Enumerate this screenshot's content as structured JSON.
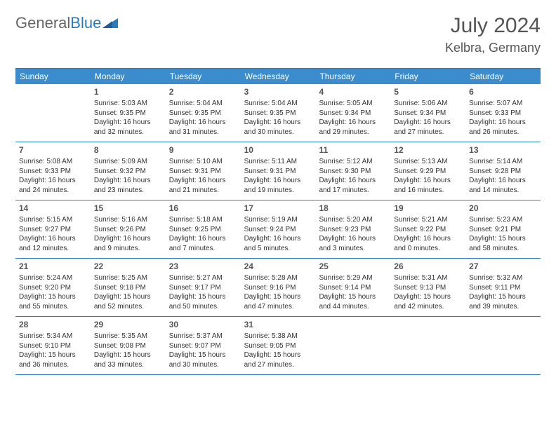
{
  "logo": {
    "general": "General",
    "blue": "Blue"
  },
  "month_title": "July 2024",
  "location": "Kelbra, Germany",
  "colors": {
    "header_bg": "#3a8ccc",
    "header_text": "#ffffff",
    "rule": "#2a7ac0",
    "text": "#333333",
    "title": "#555555"
  },
  "days_of_week": [
    "Sunday",
    "Monday",
    "Tuesday",
    "Wednesday",
    "Thursday",
    "Friday",
    "Saturday"
  ],
  "weeks": [
    [
      {
        "n": "",
        "sunrise": "",
        "sunset": "",
        "daylight1": "",
        "daylight2": ""
      },
      {
        "n": "1",
        "sunrise": "Sunrise: 5:03 AM",
        "sunset": "Sunset: 9:35 PM",
        "daylight1": "Daylight: 16 hours",
        "daylight2": "and 32 minutes."
      },
      {
        "n": "2",
        "sunrise": "Sunrise: 5:04 AM",
        "sunset": "Sunset: 9:35 PM",
        "daylight1": "Daylight: 16 hours",
        "daylight2": "and 31 minutes."
      },
      {
        "n": "3",
        "sunrise": "Sunrise: 5:04 AM",
        "sunset": "Sunset: 9:35 PM",
        "daylight1": "Daylight: 16 hours",
        "daylight2": "and 30 minutes."
      },
      {
        "n": "4",
        "sunrise": "Sunrise: 5:05 AM",
        "sunset": "Sunset: 9:34 PM",
        "daylight1": "Daylight: 16 hours",
        "daylight2": "and 29 minutes."
      },
      {
        "n": "5",
        "sunrise": "Sunrise: 5:06 AM",
        "sunset": "Sunset: 9:34 PM",
        "daylight1": "Daylight: 16 hours",
        "daylight2": "and 27 minutes."
      },
      {
        "n": "6",
        "sunrise": "Sunrise: 5:07 AM",
        "sunset": "Sunset: 9:33 PM",
        "daylight1": "Daylight: 16 hours",
        "daylight2": "and 26 minutes."
      }
    ],
    [
      {
        "n": "7",
        "sunrise": "Sunrise: 5:08 AM",
        "sunset": "Sunset: 9:33 PM",
        "daylight1": "Daylight: 16 hours",
        "daylight2": "and 24 minutes."
      },
      {
        "n": "8",
        "sunrise": "Sunrise: 5:09 AM",
        "sunset": "Sunset: 9:32 PM",
        "daylight1": "Daylight: 16 hours",
        "daylight2": "and 23 minutes."
      },
      {
        "n": "9",
        "sunrise": "Sunrise: 5:10 AM",
        "sunset": "Sunset: 9:31 PM",
        "daylight1": "Daylight: 16 hours",
        "daylight2": "and 21 minutes."
      },
      {
        "n": "10",
        "sunrise": "Sunrise: 5:11 AM",
        "sunset": "Sunset: 9:31 PM",
        "daylight1": "Daylight: 16 hours",
        "daylight2": "and 19 minutes."
      },
      {
        "n": "11",
        "sunrise": "Sunrise: 5:12 AM",
        "sunset": "Sunset: 9:30 PM",
        "daylight1": "Daylight: 16 hours",
        "daylight2": "and 17 minutes."
      },
      {
        "n": "12",
        "sunrise": "Sunrise: 5:13 AM",
        "sunset": "Sunset: 9:29 PM",
        "daylight1": "Daylight: 16 hours",
        "daylight2": "and 16 minutes."
      },
      {
        "n": "13",
        "sunrise": "Sunrise: 5:14 AM",
        "sunset": "Sunset: 9:28 PM",
        "daylight1": "Daylight: 16 hours",
        "daylight2": "and 14 minutes."
      }
    ],
    [
      {
        "n": "14",
        "sunrise": "Sunrise: 5:15 AM",
        "sunset": "Sunset: 9:27 PM",
        "daylight1": "Daylight: 16 hours",
        "daylight2": "and 12 minutes."
      },
      {
        "n": "15",
        "sunrise": "Sunrise: 5:16 AM",
        "sunset": "Sunset: 9:26 PM",
        "daylight1": "Daylight: 16 hours",
        "daylight2": "and 9 minutes."
      },
      {
        "n": "16",
        "sunrise": "Sunrise: 5:18 AM",
        "sunset": "Sunset: 9:25 PM",
        "daylight1": "Daylight: 16 hours",
        "daylight2": "and 7 minutes."
      },
      {
        "n": "17",
        "sunrise": "Sunrise: 5:19 AM",
        "sunset": "Sunset: 9:24 PM",
        "daylight1": "Daylight: 16 hours",
        "daylight2": "and 5 minutes."
      },
      {
        "n": "18",
        "sunrise": "Sunrise: 5:20 AM",
        "sunset": "Sunset: 9:23 PM",
        "daylight1": "Daylight: 16 hours",
        "daylight2": "and 3 minutes."
      },
      {
        "n": "19",
        "sunrise": "Sunrise: 5:21 AM",
        "sunset": "Sunset: 9:22 PM",
        "daylight1": "Daylight: 16 hours",
        "daylight2": "and 0 minutes."
      },
      {
        "n": "20",
        "sunrise": "Sunrise: 5:23 AM",
        "sunset": "Sunset: 9:21 PM",
        "daylight1": "Daylight: 15 hours",
        "daylight2": "and 58 minutes."
      }
    ],
    [
      {
        "n": "21",
        "sunrise": "Sunrise: 5:24 AM",
        "sunset": "Sunset: 9:20 PM",
        "daylight1": "Daylight: 15 hours",
        "daylight2": "and 55 minutes."
      },
      {
        "n": "22",
        "sunrise": "Sunrise: 5:25 AM",
        "sunset": "Sunset: 9:18 PM",
        "daylight1": "Daylight: 15 hours",
        "daylight2": "and 52 minutes."
      },
      {
        "n": "23",
        "sunrise": "Sunrise: 5:27 AM",
        "sunset": "Sunset: 9:17 PM",
        "daylight1": "Daylight: 15 hours",
        "daylight2": "and 50 minutes."
      },
      {
        "n": "24",
        "sunrise": "Sunrise: 5:28 AM",
        "sunset": "Sunset: 9:16 PM",
        "daylight1": "Daylight: 15 hours",
        "daylight2": "and 47 minutes."
      },
      {
        "n": "25",
        "sunrise": "Sunrise: 5:29 AM",
        "sunset": "Sunset: 9:14 PM",
        "daylight1": "Daylight: 15 hours",
        "daylight2": "and 44 minutes."
      },
      {
        "n": "26",
        "sunrise": "Sunrise: 5:31 AM",
        "sunset": "Sunset: 9:13 PM",
        "daylight1": "Daylight: 15 hours",
        "daylight2": "and 42 minutes."
      },
      {
        "n": "27",
        "sunrise": "Sunrise: 5:32 AM",
        "sunset": "Sunset: 9:11 PM",
        "daylight1": "Daylight: 15 hours",
        "daylight2": "and 39 minutes."
      }
    ],
    [
      {
        "n": "28",
        "sunrise": "Sunrise: 5:34 AM",
        "sunset": "Sunset: 9:10 PM",
        "daylight1": "Daylight: 15 hours",
        "daylight2": "and 36 minutes."
      },
      {
        "n": "29",
        "sunrise": "Sunrise: 5:35 AM",
        "sunset": "Sunset: 9:08 PM",
        "daylight1": "Daylight: 15 hours",
        "daylight2": "and 33 minutes."
      },
      {
        "n": "30",
        "sunrise": "Sunrise: 5:37 AM",
        "sunset": "Sunset: 9:07 PM",
        "daylight1": "Daylight: 15 hours",
        "daylight2": "and 30 minutes."
      },
      {
        "n": "31",
        "sunrise": "Sunrise: 5:38 AM",
        "sunset": "Sunset: 9:05 PM",
        "daylight1": "Daylight: 15 hours",
        "daylight2": "and 27 minutes."
      },
      {
        "n": "",
        "sunrise": "",
        "sunset": "",
        "daylight1": "",
        "daylight2": ""
      },
      {
        "n": "",
        "sunrise": "",
        "sunset": "",
        "daylight1": "",
        "daylight2": ""
      },
      {
        "n": "",
        "sunrise": "",
        "sunset": "",
        "daylight1": "",
        "daylight2": ""
      }
    ]
  ]
}
